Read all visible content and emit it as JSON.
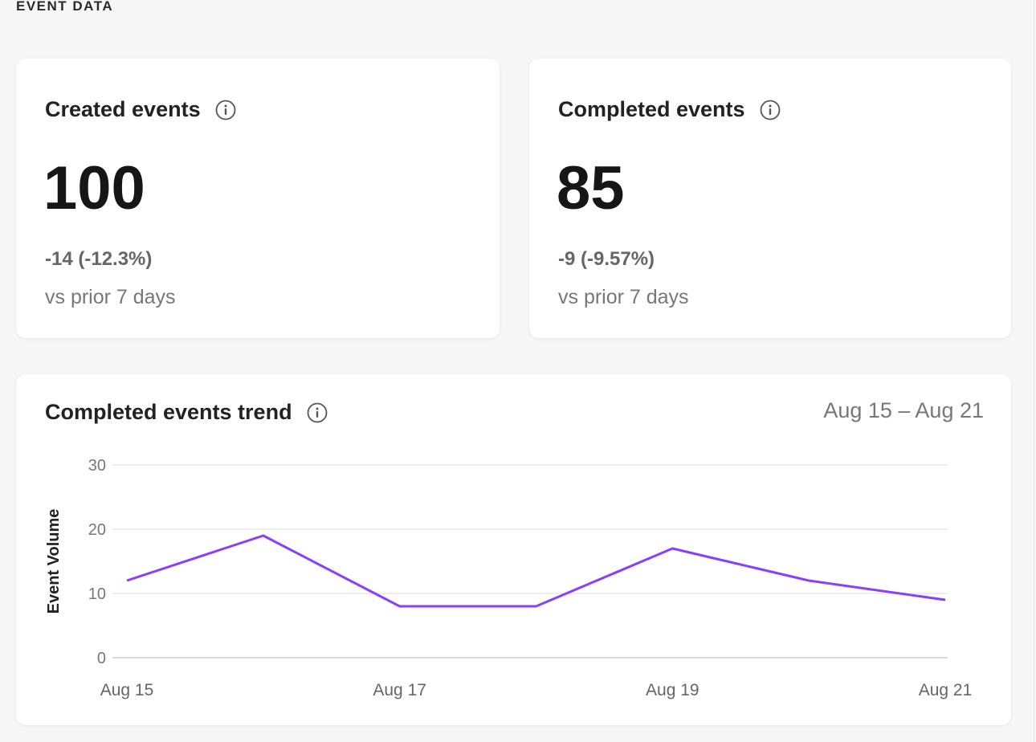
{
  "section_title": "EVENT DATA",
  "cards": [
    {
      "title": "Created events",
      "value": "100",
      "delta": "-14 (-12.3%)",
      "comparison": "vs prior 7 days",
      "icon": "info-icon"
    },
    {
      "title": "Completed events",
      "value": "85",
      "delta": "-9 (-9.57%)",
      "comparison": "vs prior 7 days",
      "icon": "info-icon"
    }
  ],
  "trend": {
    "title": "Completed events trend",
    "date_range": "Aug 15 – Aug 21",
    "icon": "info-icon"
  },
  "chart_data": {
    "type": "line",
    "x": [
      "Aug 15",
      "Aug 16",
      "Aug 17",
      "Aug 18",
      "Aug 19",
      "Aug 20",
      "Aug 21"
    ],
    "x_tick_labels": [
      "Aug 15",
      "Aug 17",
      "Aug 19",
      "Aug 21"
    ],
    "series": [
      {
        "values": [
          12,
          19,
          8,
          8,
          17,
          12,
          9
        ],
        "color": "#8a3ffc"
      }
    ],
    "ylabel": "Event Volume",
    "xlabel": "",
    "ylim": [
      0,
      30
    ],
    "y_ticks": [
      0,
      10,
      20,
      30
    ],
    "grid": true
  }
}
